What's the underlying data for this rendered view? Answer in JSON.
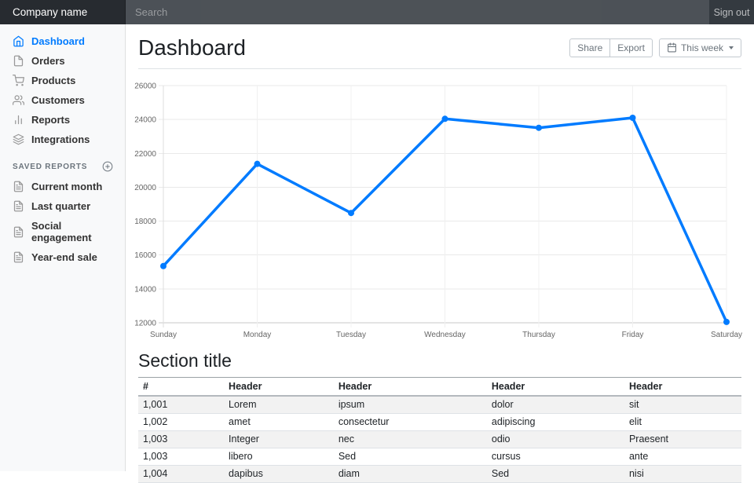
{
  "colors": {
    "accent": "#007bff",
    "navbar_bg": "#343a40",
    "navbar_brand_bg": "#272b30",
    "sidebar_bg": "#f8f9fa",
    "muted_text": "#6c757d",
    "border": "#dee2e6",
    "chart_line": "#007bff"
  },
  "navbar": {
    "brand": "Company name",
    "search_placeholder": "Search",
    "search_value": "",
    "sign_out": "Sign out"
  },
  "sidebar": {
    "items": [
      {
        "label": "Dashboard",
        "icon": "home",
        "active": true
      },
      {
        "label": "Orders",
        "icon": "file",
        "active": false
      },
      {
        "label": "Products",
        "icon": "shopping-cart",
        "active": false
      },
      {
        "label": "Customers",
        "icon": "users",
        "active": false
      },
      {
        "label": "Reports",
        "icon": "bar-chart",
        "active": false
      },
      {
        "label": "Integrations",
        "icon": "layers",
        "active": false
      }
    ],
    "saved_reports_heading": "Saved reports",
    "saved_reports_add_icon": "plus-circle",
    "saved_items": [
      {
        "label": "Current month",
        "icon": "file-text"
      },
      {
        "label": "Last quarter",
        "icon": "file-text"
      },
      {
        "label": "Social engagement",
        "icon": "file-text"
      },
      {
        "label": "Year-end sale",
        "icon": "file-text"
      }
    ]
  },
  "header": {
    "title": "Dashboard",
    "share_label": "Share",
    "export_label": "Export",
    "period_label": "This week",
    "period_icon": "calendar"
  },
  "chart_data": {
    "type": "line",
    "categories": [
      "Sunday",
      "Monday",
      "Tuesday",
      "Wednesday",
      "Thursday",
      "Friday",
      "Saturday"
    ],
    "values": [
      15350,
      21380,
      18480,
      24040,
      23510,
      24100,
      12050
    ],
    "title": "",
    "xlabel": "",
    "ylabel": "",
    "ylim": [
      12000,
      26000
    ],
    "ytick_step": 2000,
    "grid": true,
    "legend": "none",
    "line_color": "#007bff",
    "point_color": "#007bff",
    "tick_color": "#666666"
  },
  "section": {
    "title": "Section title",
    "table": {
      "headers": [
        "#",
        "Header",
        "Header",
        "Header",
        "Header"
      ],
      "rows": [
        [
          "1,001",
          "Lorem",
          "ipsum",
          "dolor",
          "sit"
        ],
        [
          "1,002",
          "amet",
          "consectetur",
          "adipiscing",
          "elit"
        ],
        [
          "1,003",
          "Integer",
          "nec",
          "odio",
          "Praesent"
        ],
        [
          "1,003",
          "libero",
          "Sed",
          "cursus",
          "ante"
        ],
        [
          "1,004",
          "dapibus",
          "diam",
          "Sed",
          "nisi"
        ]
      ]
    }
  }
}
